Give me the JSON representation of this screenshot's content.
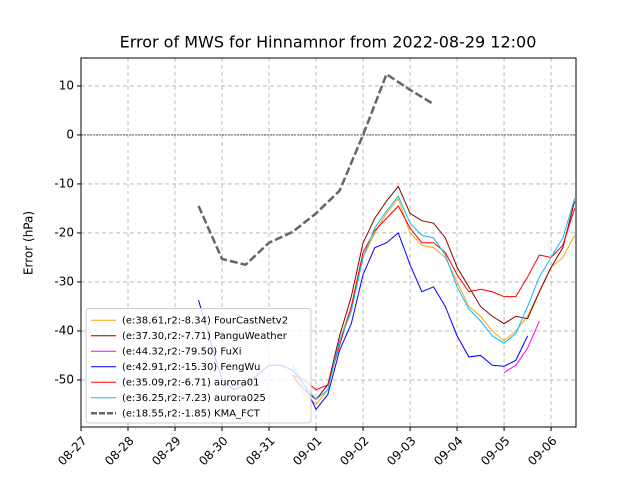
{
  "chart_data": {
    "type": "line",
    "title": "Error of MWS for Hinnamnor from 2022-08-29 12:00",
    "y_label": "Error (hPa)",
    "xlim": [
      0,
      10.53
    ],
    "ylim": [
      -59.6,
      15.7
    ],
    "xticks": [
      {
        "value": 0,
        "label": "08-27"
      },
      {
        "value": 1,
        "label": "08-28"
      },
      {
        "value": 2,
        "label": "08-29"
      },
      {
        "value": 3,
        "label": "08-30"
      },
      {
        "value": 4,
        "label": "08-31"
      },
      {
        "value": 5,
        "label": "09-01"
      },
      {
        "value": 6,
        "label": "09-02"
      },
      {
        "value": 7,
        "label": "09-03"
      },
      {
        "value": 8,
        "label": "09-04"
      },
      {
        "value": 9,
        "label": "09-05"
      },
      {
        "value": 10,
        "label": "09-06"
      }
    ],
    "yticks": [
      -50,
      -40,
      -30,
      -20,
      -10,
      0,
      10
    ],
    "grid": true,
    "hlines": [
      0
    ],
    "legend": "lower left",
    "series": [
      {
        "name": "(e:38.61,r2:-8.34) FourCastNetv2",
        "color": "#ffa500",
        "dash": false,
        "x": [
          4.5,
          4.75,
          5,
          5.25,
          5.5,
          5.75,
          6,
          6.25,
          6.5,
          6.75,
          7,
          7.25,
          7.5,
          7.75,
          8,
          8.25,
          8.5,
          8.75,
          9,
          9.25,
          9.5,
          9.75,
          10,
          10.25,
          10.5
        ],
        "values": [
          -49,
          -53,
          -55,
          -52,
          -42,
          -35,
          -25,
          -20,
          -16,
          -13,
          -20,
          -22.5,
          -23,
          -25,
          -30,
          -35,
          -37,
          -40,
          -42,
          -40,
          -37,
          -32,
          -27,
          -25,
          -20.5
        ]
      },
      {
        "name": "(e:37.30,r2:-7.71) PanguWeather",
        "color": "#8b0000",
        "dash": false,
        "x": [
          4.5,
          4.75,
          5,
          5.25,
          5.5,
          5.75,
          6,
          6.25,
          6.5,
          6.75,
          7,
          7.25,
          7.5,
          7.75,
          8,
          8.25,
          8.5,
          8.75,
          9,
          9.25,
          9.5,
          9.75,
          10,
          10.25,
          10.5
        ],
        "values": [
          -49,
          -52,
          -54,
          -51,
          -41,
          -33,
          -22,
          -17,
          -13.5,
          -10.5,
          -16,
          -17.5,
          -18,
          -21,
          -27,
          -31,
          -35,
          -37,
          -38.5,
          -37,
          -37.5,
          -32,
          -27,
          -23,
          -13.5
        ]
      },
      {
        "name": "(e:44.32,r2:-79.50) FuXi",
        "color": "#ff00ff",
        "dash": false,
        "x": [
          9,
          9.25,
          9.5,
          9.75
        ],
        "values": [
          -48.5,
          -47,
          -43.5,
          -38
        ]
      },
      {
        "name": "(e:42.91,r2:-15.30) FengWu",
        "color": "#0000ff",
        "dash": false,
        "x": [
          2.5,
          2.75,
          3,
          3.25,
          3.5,
          3.75,
          4,
          4.25,
          4.5,
          4.75,
          5,
          5.25,
          5.5,
          5.75,
          6,
          6.25,
          6.5,
          6.75,
          7,
          7.25,
          7.5,
          7.75,
          8,
          8.25,
          8.5,
          8.75,
          9,
          9.25,
          9.5
        ],
        "values": [
          -33.7,
          -42,
          -50,
          -52,
          -51,
          -49,
          -47,
          -47,
          -48,
          -51,
          -56,
          -53,
          -44,
          -38.5,
          -28.5,
          -23,
          -22,
          -20,
          -26.5,
          -32,
          -31,
          -35,
          -41,
          -45.3,
          -45,
          -47,
          -47.2,
          -46,
          -41
        ]
      },
      {
        "name": "(e:35.09,r2:-6.71) aurora01",
        "color": "#ff0000",
        "dash": false,
        "x": [
          4.5,
          4.75,
          5,
          5.25,
          5.5,
          5.75,
          6,
          6.25,
          6.5,
          6.75,
          7,
          7.25,
          7.5,
          7.75,
          8,
          8.25,
          8.5,
          8.75,
          9,
          9.25,
          9.5,
          9.75,
          10,
          10.25,
          10.5
        ],
        "values": [
          -49,
          -50,
          -52,
          -51,
          -43,
          -35,
          -24,
          -19.5,
          -17,
          -14.5,
          -19,
          -22,
          -22,
          -24,
          -28.5,
          -32,
          -31.5,
          -32,
          -33,
          -33,
          -29,
          -24.5,
          -25,
          -22.5,
          -15
        ]
      },
      {
        "name": "(e:36.25,r2:-7.23) aurora025",
        "color": "#00bfff",
        "dash": false,
        "x": [
          4.5,
          4.75,
          5,
          5.25,
          5.5,
          5.75,
          6,
          6.25,
          6.5,
          6.75,
          7,
          7.25,
          7.5,
          7.75,
          8,
          8.25,
          8.5,
          8.75,
          9,
          9.25,
          9.5,
          9.75,
          10,
          10.25,
          10.5
        ],
        "values": [
          -47,
          -51,
          -54,
          -52,
          -42,
          -36,
          -25,
          -19,
          -15.5,
          -12.5,
          -18,
          -20.5,
          -21,
          -24.5,
          -31,
          -35.5,
          -38,
          -41,
          -42.5,
          -40.5,
          -35,
          -29,
          -25,
          -21,
          -13
        ]
      },
      {
        "name": "(e:18.55,r2:-1.85) KMA_FCT",
        "color": "#666666",
        "dash": true,
        "x": [
          2.5,
          3,
          3.5,
          4,
          4.5,
          5,
          5.5,
          6,
          6.5,
          7,
          7.5
        ],
        "values": [
          -14.5,
          -25.3,
          -26.5,
          -22,
          -19.8,
          -16,
          -11.4,
          0,
          12.4,
          9.2,
          6.3
        ]
      }
    ]
  }
}
